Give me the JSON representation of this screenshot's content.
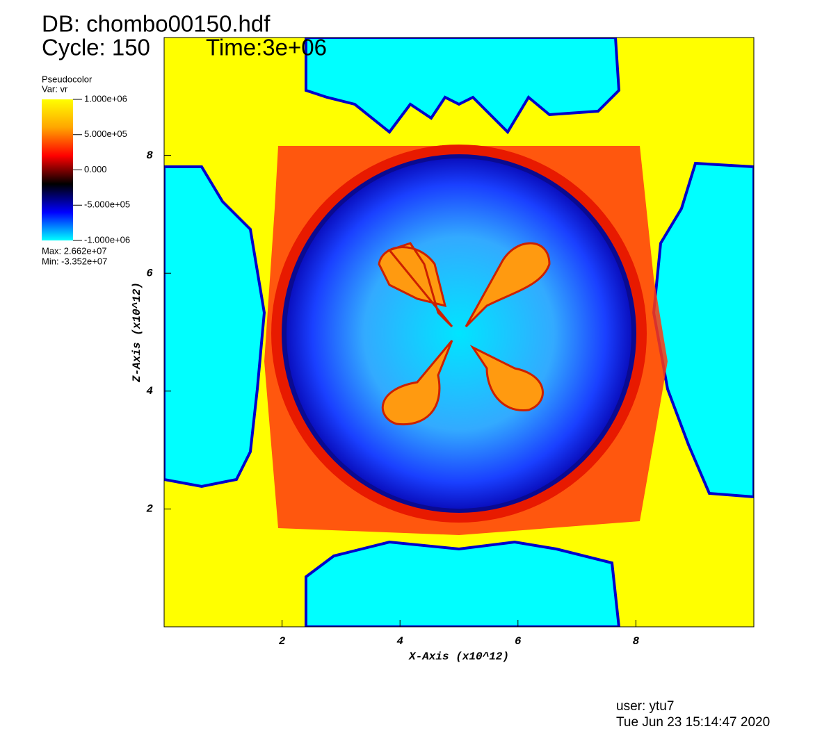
{
  "chart_data": {
    "type": "pseudocolor",
    "title": "DB: chombo00150.hdf",
    "cycle": "Cycle: 150",
    "time": "Time:3e+06",
    "x_label": "X-Axis (x10^12)",
    "y_label": "Z-Axis (x10^12)",
    "xlim": [
      0,
      10
    ],
    "ylim": [
      0,
      10
    ],
    "xticks": [
      2,
      4,
      6,
      8
    ],
    "yticks": [
      2,
      4,
      6,
      8
    ],
    "legend": {
      "title": "Pseudocolor",
      "variable": "Var: vr",
      "clim": [
        -1000000,
        1000000
      ],
      "colormap": [
        "#00ffff",
        "#0000ff",
        "#000000",
        "#ff0000",
        "#ffa500",
        "#ffff00"
      ],
      "ticks": [
        {
          "value": 1000000,
          "label": "1.000e+06"
        },
        {
          "value": 500000,
          "label": "5.000e+05"
        },
        {
          "value": 0,
          "label": "0.000"
        },
        {
          "value": -500000,
          "label": "-5.000e+05"
        },
        {
          "value": -1000000,
          "label": "-1.000e+06"
        }
      ],
      "max": "Max: 2.662e+07",
      "min": "Min: -3.352e+07"
    },
    "user": "user: ytu7",
    "date": "Tue Jun 23 15:14:47 2020"
  }
}
